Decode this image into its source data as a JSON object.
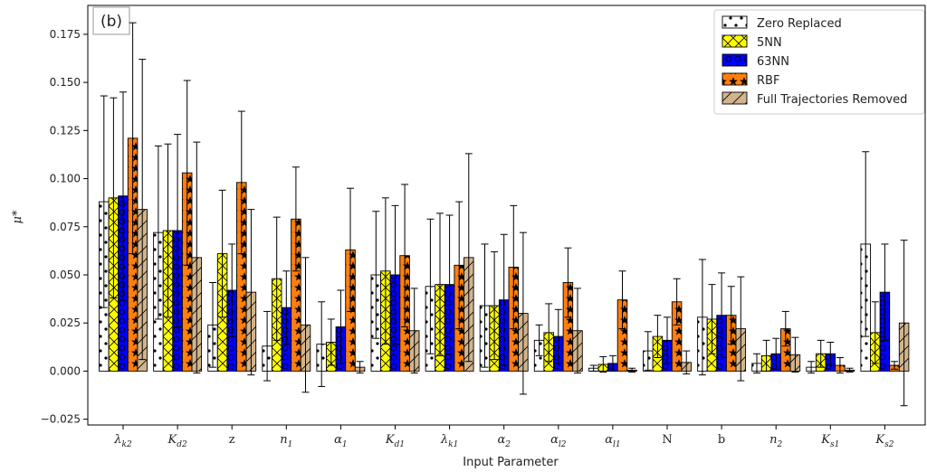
{
  "panel_label": "(b)",
  "chart_data": {
    "type": "bar",
    "xlabel": "Input Parameter",
    "ylabel": "μ*",
    "ylim": [
      -0.028,
      0.19
    ],
    "yticks": [
      "−0.025",
      "0.000",
      "0.025",
      "0.050",
      "0.075",
      "0.100",
      "0.125",
      "0.150",
      "0.175"
    ],
    "ytick_values": [
      -0.025,
      0.0,
      0.025,
      0.05,
      0.075,
      0.1,
      0.125,
      0.15,
      0.175
    ],
    "grid": false,
    "legend_position": "top-right",
    "categories": [
      {
        "base": "λ",
        "sub": "k2",
        "italic": true
      },
      {
        "base": "K",
        "sub": "d2",
        "italic": true
      },
      {
        "base": "z",
        "sub": "",
        "italic": false
      },
      {
        "base": "n",
        "sub": "1",
        "italic": true
      },
      {
        "base": "α",
        "sub": "1",
        "italic": true
      },
      {
        "base": "K",
        "sub": "d1",
        "italic": true
      },
      {
        "base": "λ",
        "sub": "k1",
        "italic": true
      },
      {
        "base": "α",
        "sub": "2",
        "italic": true
      },
      {
        "base": "α",
        "sub": "l2",
        "italic": true
      },
      {
        "base": "α",
        "sub": "l1",
        "italic": true
      },
      {
        "base": "N",
        "sub": "",
        "italic": false
      },
      {
        "base": "b",
        "sub": "",
        "italic": false
      },
      {
        "base": "n",
        "sub": "2",
        "italic": true
      },
      {
        "base": "K",
        "sub": "s1",
        "italic": true
      },
      {
        "base": "K",
        "sub": "s2",
        "italic": true
      }
    ],
    "series": [
      {
        "name": "Zero Replaced",
        "fill": "#ffffff",
        "hatch": "dots",
        "values": [
          0.088,
          0.072,
          0.024,
          0.013,
          0.014,
          0.05,
          0.044,
          0.034,
          0.016,
          0.0015,
          0.0105,
          0.028,
          0.004,
          0.002,
          0.066
        ],
        "errors": [
          0.055,
          0.045,
          0.022,
          0.018,
          0.022,
          0.033,
          0.035,
          0.032,
          0.008,
          0.0015,
          0.01,
          0.03,
          0.005,
          0.003,
          0.048
        ]
      },
      {
        "name": "5NN",
        "fill": "#ffff00",
        "hatch": "cross",
        "values": [
          0.09,
          0.073,
          0.061,
          0.048,
          0.015,
          0.052,
          0.045,
          0.034,
          0.02,
          0.0035,
          0.018,
          0.027,
          0.008,
          0.009,
          0.02
        ],
        "errors": [
          0.052,
          0.045,
          0.033,
          0.032,
          0.012,
          0.038,
          0.037,
          0.028,
          0.015,
          0.004,
          0.011,
          0.018,
          0.008,
          0.007,
          0.016
        ]
      },
      {
        "name": "63NN",
        "fill": "#0000ff",
        "hatch": "circles",
        "values": [
          0.091,
          0.073,
          0.042,
          0.033,
          0.023,
          0.05,
          0.045,
          0.037,
          0.018,
          0.004,
          0.016,
          0.029,
          0.009,
          0.009,
          0.041
        ],
        "errors": [
          0.054,
          0.05,
          0.024,
          0.019,
          0.019,
          0.036,
          0.036,
          0.034,
          0.014,
          0.004,
          0.012,
          0.022,
          0.008,
          0.006,
          0.025
        ]
      },
      {
        "name": "RBF",
        "fill": "#ff7f0e",
        "hatch": "stars",
        "values": [
          0.121,
          0.103,
          0.098,
          0.079,
          0.063,
          0.06,
          0.055,
          0.054,
          0.046,
          0.037,
          0.036,
          0.029,
          0.022,
          0.003,
          0.003
        ],
        "errors": [
          0.06,
          0.048,
          0.037,
          0.027,
          0.032,
          0.037,
          0.033,
          0.032,
          0.018,
          0.015,
          0.012,
          0.015,
          0.009,
          0.004,
          0.002
        ]
      },
      {
        "name": "Full Trajectories Removed",
        "fill": "#d2b48c",
        "hatch": "diag",
        "values": [
          0.084,
          0.059,
          0.041,
          0.024,
          0.002,
          0.021,
          0.059,
          0.03,
          0.021,
          0.0005,
          0.0045,
          0.022,
          0.0085,
          0.0005,
          0.025
        ],
        "errors": [
          0.078,
          0.06,
          0.043,
          0.035,
          0.003,
          0.022,
          0.054,
          0.042,
          0.022,
          0.001,
          0.006,
          0.027,
          0.009,
          0.001,
          0.043
        ]
      }
    ]
  }
}
